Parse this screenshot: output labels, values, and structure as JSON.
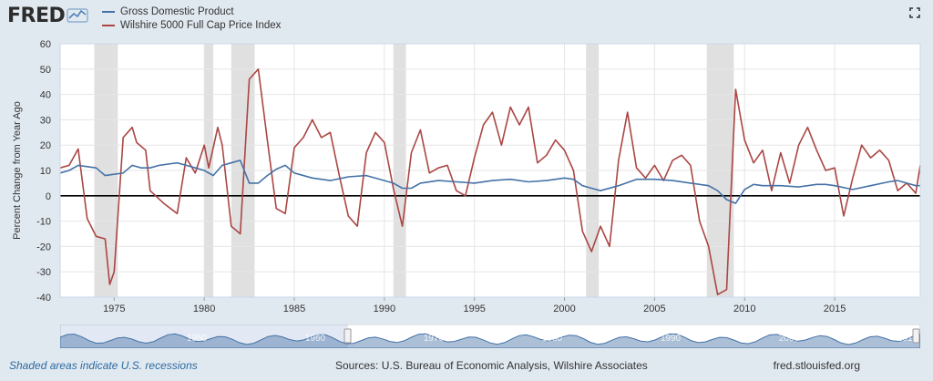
{
  "header": {
    "logo_text": "FRED",
    "logo_mark": "chart-squiggle-icon",
    "fullscreen_icon": "fullscreen-icon"
  },
  "colors": {
    "gdp": "#4572a7",
    "wilshire": "#aa4643",
    "recession": "#e0e0e0",
    "plot_bg": "#ffffff",
    "page_bg": "#e1e9f0"
  },
  "footer": {
    "note": "Shaded areas indicate U.S. recessions",
    "source": "Sources: U.S. Bureau of Economic Analysis, Wilshire Associates",
    "site": "fred.stlouisfed.org"
  },
  "navigator": {
    "labels": [
      "1950",
      "1960",
      "1970",
      "1980",
      "1990",
      "2000",
      "2010"
    ]
  },
  "chart_data": {
    "type": "line",
    "ylabel": "Percent Change from Year Ago",
    "xlim": [
      1972.0,
      2019.75
    ],
    "ylim": [
      -40,
      60
    ],
    "yticks": [
      -40,
      -30,
      -20,
      -10,
      0,
      10,
      20,
      30,
      40,
      50,
      60
    ],
    "xticks": [
      1975,
      1980,
      1985,
      1990,
      1995,
      2000,
      2005,
      2010,
      2015
    ],
    "grid": true,
    "recessions": [
      [
        1973.9,
        1975.2
      ],
      [
        1980.0,
        1980.5
      ],
      [
        1981.5,
        1982.8
      ],
      [
        1990.5,
        1991.2
      ],
      [
        2001.2,
        2001.9
      ],
      [
        2007.9,
        2009.4
      ]
    ],
    "series": [
      {
        "name": "Gross Domestic Product",
        "x": [
          1972.0,
          1972.5,
          1973.0,
          1973.5,
          1974.0,
          1974.5,
          1975.0,
          1975.5,
          1976.0,
          1976.5,
          1977.0,
          1977.5,
          1978.0,
          1978.5,
          1979.0,
          1979.5,
          1980.0,
          1980.5,
          1981.0,
          1981.5,
          1982.0,
          1982.5,
          1983.0,
          1983.5,
          1984.0,
          1984.5,
          1985.0,
          1986.0,
          1987.0,
          1988.0,
          1989.0,
          1990.0,
          1990.5,
          1991.0,
          1991.5,
          1992.0,
          1993.0,
          1994.0,
          1995.0,
          1996.0,
          1997.0,
          1998.0,
          1999.0,
          2000.0,
          2000.5,
          2001.0,
          2001.5,
          2002.0,
          2003.0,
          2004.0,
          2005.0,
          2006.0,
          2007.0,
          2007.5,
          2008.0,
          2008.5,
          2009.0,
          2009.5,
          2010.0,
          2010.5,
          2011.0,
          2012.0,
          2013.0,
          2014.0,
          2014.5,
          2015.0,
          2016.0,
          2017.0,
          2018.0,
          2018.5,
          2019.0,
          2019.5,
          2019.75
        ],
        "values": [
          9,
          10,
          12,
          11.5,
          11,
          8,
          8.5,
          9,
          12,
          11,
          11,
          12,
          12.5,
          13,
          12,
          11,
          10,
          8,
          12,
          13,
          14,
          5,
          5,
          8,
          10.5,
          12,
          9,
          7,
          6,
          7.5,
          8,
          6,
          5,
          3,
          3,
          5,
          6,
          5.5,
          5,
          6,
          6.5,
          5.5,
          6,
          7,
          6.5,
          4,
          3,
          2,
          4,
          6.5,
          6.5,
          6,
          5,
          4.5,
          4,
          2,
          -1.5,
          -3,
          2.5,
          4.5,
          4,
          4,
          3.5,
          4.5,
          4.5,
          4,
          2.5,
          4,
          5.5,
          6,
          5,
          4,
          4
        ]
      },
      {
        "name": "Wilshire 5000 Full Cap Price Index",
        "x": [
          1972.0,
          1972.5,
          1973.0,
          1973.5,
          1974.0,
          1974.5,
          1974.75,
          1975.0,
          1975.5,
          1976.0,
          1976.25,
          1976.75,
          1977.0,
          1977.75,
          1978.5,
          1979.0,
          1979.5,
          1980.0,
          1980.25,
          1980.75,
          1981.0,
          1981.5,
          1982.0,
          1982.5,
          1983.0,
          1983.5,
          1984.0,
          1984.5,
          1985.0,
          1985.5,
          1986.0,
          1986.5,
          1987.0,
          1987.5,
          1988.0,
          1988.5,
          1989.0,
          1989.5,
          1990.0,
          1990.5,
          1991.0,
          1991.5,
          1992.0,
          1992.5,
          1993.0,
          1993.5,
          1994.0,
          1994.5,
          1995.0,
          1995.5,
          1996.0,
          1996.5,
          1997.0,
          1997.5,
          1998.0,
          1998.5,
          1999.0,
          1999.5,
          2000.0,
          2000.5,
          2001.0,
          2001.5,
          2002.0,
          2002.5,
          2003.0,
          2003.5,
          2004.0,
          2004.5,
          2005.0,
          2005.5,
          2006.0,
          2006.5,
          2007.0,
          2007.5,
          2008.0,
          2008.5,
          2009.0,
          2009.5,
          2010.0,
          2010.5,
          2011.0,
          2011.5,
          2012.0,
          2012.5,
          2013.0,
          2013.5,
          2014.0,
          2014.5,
          2015.0,
          2015.5,
          2016.0,
          2016.5,
          2017.0,
          2017.5,
          2018.0,
          2018.5,
          2019.0,
          2019.5,
          2019.75
        ],
        "values": [
          11,
          12,
          18.5,
          -9,
          -16,
          -17,
          -35,
          -30,
          23,
          27,
          21,
          18,
          2,
          -3,
          -7,
          15,
          9,
          20,
          11,
          27,
          20,
          -12,
          -15,
          46,
          50,
          22,
          -5,
          -7,
          19,
          23,
          30,
          23,
          25,
          8,
          -8,
          -12,
          17,
          25,
          21,
          3,
          -12,
          17,
          26,
          9,
          11,
          12,
          2,
          0,
          15,
          28,
          33,
          20,
          35,
          28,
          35,
          13,
          16,
          22,
          18,
          10,
          -14,
          -22,
          -12,
          -20,
          14,
          33,
          11,
          7,
          12,
          6,
          14,
          16,
          12,
          -10,
          -20,
          -39,
          -37,
          42,
          22,
          13,
          18,
          2,
          17,
          5,
          20,
          27,
          18,
          10,
          11,
          -8,
          7,
          20,
          15,
          18,
          14,
          2,
          5,
          1,
          12
        ]
      }
    ]
  }
}
